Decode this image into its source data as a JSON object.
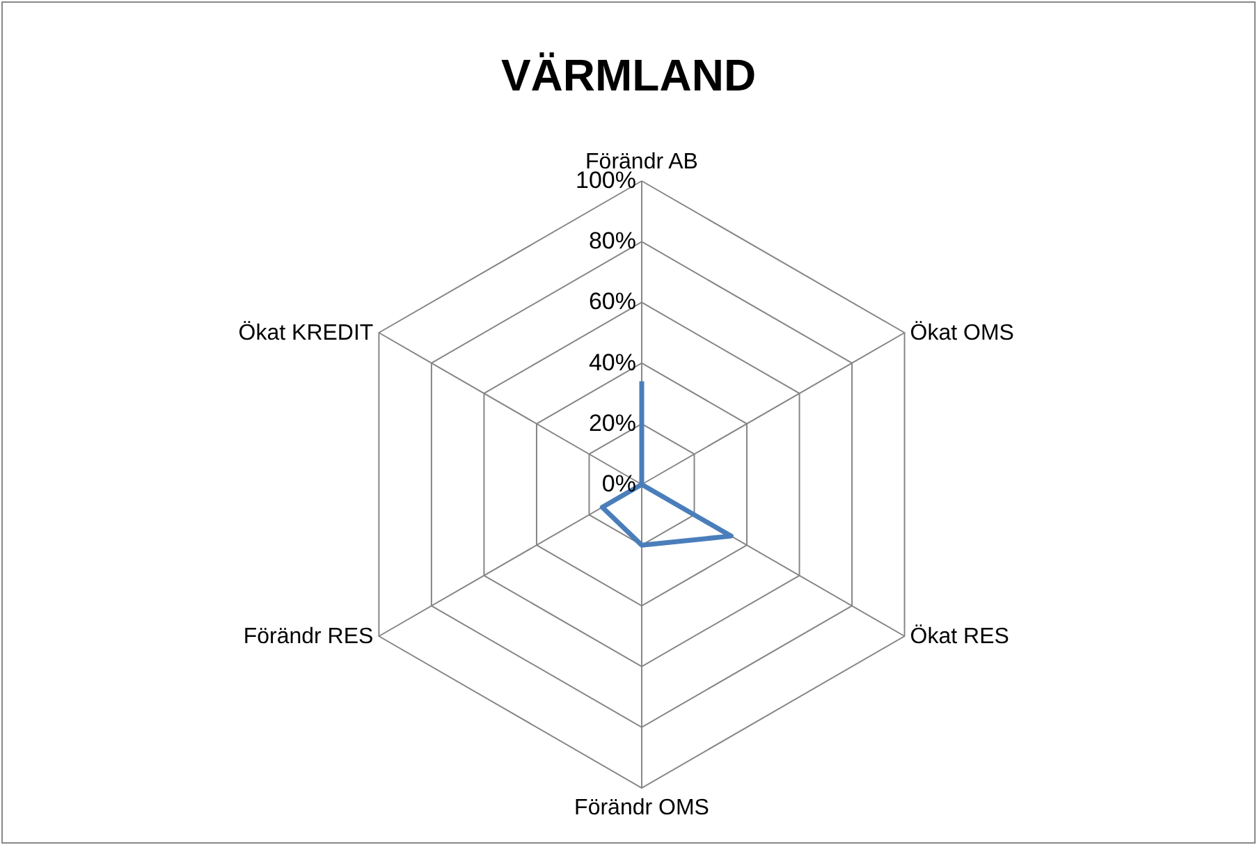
{
  "chart_data": {
    "type": "radar",
    "title": "VÄRMLAND",
    "categories": [
      "Förändr AB",
      "Ökat OMS",
      "Ökat RES",
      "Förändr OMS",
      "Förändr RES",
      "Ökat KREDIT"
    ],
    "series": [
      {
        "color": "#4a7ebb",
        "values": [
          34,
          0,
          34,
          20,
          15,
          0
        ]
      }
    ],
    "ylim": [
      0,
      100
    ],
    "yticks": [
      {
        "value": 0,
        "label": "0%"
      },
      {
        "value": 20,
        "label": "20%"
      },
      {
        "value": 40,
        "label": "40%"
      },
      {
        "value": 60,
        "label": "60%"
      },
      {
        "value": 80,
        "label": "80%"
      },
      {
        "value": 100,
        "label": "100%"
      }
    ],
    "grid": true,
    "marker": "none",
    "line_style": "solid"
  }
}
